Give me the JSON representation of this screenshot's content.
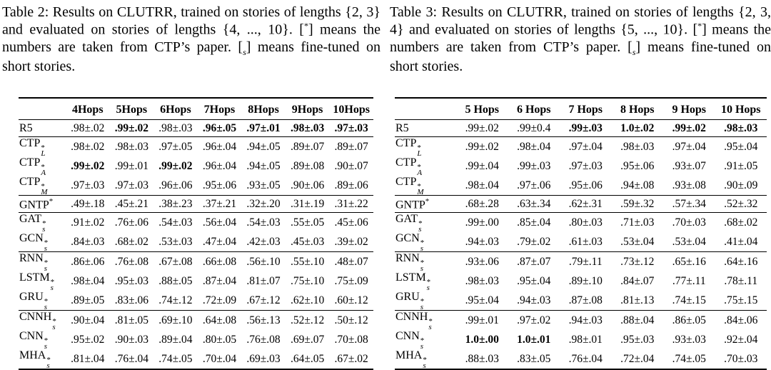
{
  "page": {
    "background": "#ffffff",
    "text_color": "#000000"
  },
  "tables": [
    {
      "id": "table-2",
      "caption_segments": [
        {
          "t": "Table 2:  Results on CLUTRR, trained on stories of lengths {2, 3} and evaluated on stories of lengths {4, ..., 10}.  ["
        },
        {
          "t": "*",
          "style": "sup"
        },
        {
          "t": "] means the numbers are taken from CTP’s paper. ["
        },
        {
          "t": "s",
          "style": "sub",
          "italic": true
        },
        {
          "t": "] means fine-tuned on short stories."
        }
      ],
      "columns": [
        "4Hops",
        "5Hops",
        "6Hops",
        "7Hops",
        "8Hops",
        "9Hops",
        "10Hops"
      ],
      "groups": [
        {
          "rows": [
            {
              "label": {
                "base": "R5"
              },
              "cells": [
                ".98±.02",
                {
                  "t": ".99±.02",
                  "b": true
                },
                ".98±.03",
                {
                  "t": ".96±.05",
                  "b": true
                },
                {
                  "t": ".97±.01",
                  "b": true
                },
                {
                  "t": ".98±.03",
                  "b": true
                },
                {
                  "t": ".97±.03",
                  "b": true
                }
              ]
            }
          ]
        },
        {
          "rows": [
            {
              "label": {
                "base": "CTP",
                "sup": "*",
                "sub": "L"
              },
              "cells": [
                ".98±.02",
                ".98±.03",
                ".97±.05",
                ".96±.04",
                ".94±.05",
                ".89±.07",
                ".89±.07"
              ]
            },
            {
              "label": {
                "base": "CTP",
                "sup": "*",
                "sub": "A"
              },
              "cells": [
                {
                  "t": ".99±.02",
                  "b": true
                },
                ".99±.01",
                {
                  "t": ".99±.02",
                  "b": true
                },
                ".96±.04",
                ".94±.05",
                ".89±.08",
                ".90±.07"
              ]
            },
            {
              "label": {
                "base": "CTP",
                "sup": "*",
                "sub": "M"
              },
              "cells": [
                ".97±.03",
                ".97±.03",
                ".96±.06",
                ".95±.06",
                ".93±.05",
                ".90±.06",
                ".89±.06"
              ]
            }
          ]
        },
        {
          "rows": [
            {
              "label": {
                "base": "GNTP",
                "sup": "*"
              },
              "cells": [
                ".49±.18",
                ".45±.21",
                ".38±.23",
                ".37±.21",
                ".32±.20",
                ".31±.19",
                ".31±.22"
              ]
            }
          ]
        },
        {
          "rows": [
            {
              "label": {
                "base": "GAT",
                "sup": "*",
                "sub": "s"
              },
              "cells": [
                ".91±.02",
                ".76±.06",
                ".54±.03",
                ".56±.04",
                ".54±.03",
                ".55±.05",
                ".45±.06"
              ]
            },
            {
              "label": {
                "base": "GCN",
                "sup": "*",
                "sub": "s"
              },
              "cells": [
                ".84±.03",
                ".68±.02",
                ".53±.03",
                ".47±.04",
                ".42±.03",
                ".45±.03",
                ".39±.02"
              ]
            }
          ]
        },
        {
          "rows": [
            {
              "label": {
                "base": "RNN",
                "sup": "*",
                "sub": "s"
              },
              "cells": [
                ".86±.06",
                ".76±.08",
                ".67±.08",
                ".66±.08",
                ".56±.10",
                ".55±.10",
                ".48±.07"
              ]
            },
            {
              "label": {
                "base": "LSTM",
                "sup": "*",
                "sub": "s"
              },
              "cells": [
                ".98±.04",
                ".95±.03",
                ".88±.05",
                ".87±.04",
                ".81±.07",
                ".75±.10",
                ".75±.09"
              ]
            },
            {
              "label": {
                "base": "GRU",
                "sup": "*",
                "sub": "s"
              },
              "cells": [
                ".89±.05",
                ".83±.06",
                ".74±.12",
                ".72±.09",
                ".67±.12",
                ".62±.10",
                ".60±.12"
              ]
            }
          ]
        },
        {
          "rows": [
            {
              "label": {
                "base": "CNNH",
                "sup": "*",
                "sub": "s"
              },
              "cells": [
                ".90±.04",
                ".81±.05",
                ".69±.10",
                ".64±.08",
                ".56±.13",
                ".52±.12",
                ".50±.12"
              ]
            },
            {
              "label": {
                "base": "CNN",
                "sup": "*",
                "sub": "s"
              },
              "cells": [
                ".95±.02",
                ".90±.03",
                ".89±.04",
                ".80±.05",
                ".76±.08",
                ".69±.07",
                ".70±.08"
              ]
            },
            {
              "label": {
                "base": "MHA",
                "sup": "*",
                "sub": "s"
              },
              "cells": [
                ".81±.04",
                ".76±.04",
                ".74±.05",
                ".70±.04",
                ".69±.03",
                ".64±.05",
                ".67±.02"
              ]
            }
          ]
        }
      ]
    },
    {
      "id": "table-3",
      "caption_segments": [
        {
          "t": "Table 3:  Results on CLUTRR, trained on stories of lengths {2, 3, 4} and evaluated on stories of lengths {5, ..., 10}.  ["
        },
        {
          "t": "*",
          "style": "sup"
        },
        {
          "t": "] means the numbers are taken from CTP’s paper. ["
        },
        {
          "t": "s",
          "style": "sub",
          "italic": true
        },
        {
          "t": "] means fine-tuned on short stories."
        }
      ],
      "columns": [
        "5 Hops",
        "6 Hops",
        "7 Hops",
        "8 Hops",
        "9 Hops",
        "10 Hops"
      ],
      "groups": [
        {
          "rows": [
            {
              "label": {
                "base": "R5"
              },
              "cells": [
                ".99±.02",
                ".99±0.4",
                {
                  "t": ".99±.03",
                  "b": true
                },
                {
                  "t": "1.0±.02",
                  "b": true
                },
                {
                  "t": ".99±.02",
                  "b": true
                },
                {
                  "t": ".98±.03",
                  "b": true
                }
              ]
            }
          ]
        },
        {
          "rows": [
            {
              "label": {
                "base": "CTP",
                "sup": "*",
                "sub": "L"
              },
              "cells": [
                ".99±.02",
                ".98±.04",
                ".97±.04",
                ".98±.03",
                ".97±.04",
                ".95±.04"
              ]
            },
            {
              "label": {
                "base": "CTP",
                "sup": "*",
                "sub": "A"
              },
              "cells": [
                ".99±.04",
                ".99±.03",
                ".97±.03",
                ".95±.06",
                ".93±.07",
                ".91±.05"
              ]
            },
            {
              "label": {
                "base": "CTP",
                "sup": "*",
                "sub": "M"
              },
              "cells": [
                ".98±.04",
                ".97±.06",
                ".95±.06",
                ".94±.08",
                ".93±.08",
                ".90±.09"
              ]
            }
          ]
        },
        {
          "rows": [
            {
              "label": {
                "base": "GNTP",
                "sup": "*"
              },
              "cells": [
                ".68±.28",
                ".63±.34",
                ".62±.31",
                ".59±.32",
                ".57±.34",
                ".52±.32"
              ]
            }
          ]
        },
        {
          "rows": [
            {
              "label": {
                "base": "GAT",
                "sup": "*",
                "sub": "s"
              },
              "cells": [
                ".99±.00",
                ".85±.04",
                ".80±.03",
                ".71±.03",
                ".70±.03",
                ".68±.02"
              ]
            },
            {
              "label": {
                "base": "GCN",
                "sup": "*",
                "sub": "s"
              },
              "cells": [
                ".94±.03",
                ".79±.02",
                ".61±.03",
                ".53±.04",
                ".53±.04",
                ".41±.04"
              ]
            }
          ]
        },
        {
          "rows": [
            {
              "label": {
                "base": "RNN",
                "sup": "*",
                "sub": "s"
              },
              "cells": [
                ".93±.06",
                ".87±.07",
                ".79±.11",
                ".73±.12",
                ".65±.16",
                ".64±.16"
              ]
            },
            {
              "label": {
                "base": "LSTM",
                "sup": "*",
                "sub": "s"
              },
              "cells": [
                ".98±.03",
                ".95±.04",
                ".89±.10",
                ".84±.07",
                ".77±.11",
                ".78±.11"
              ]
            },
            {
              "label": {
                "base": "GRU",
                "sup": "*",
                "sub": "s"
              },
              "cells": [
                ".95±.04",
                ".94±.03",
                ".87±.08",
                ".81±.13",
                ".74±.15",
                ".75±.15"
              ]
            }
          ]
        },
        {
          "rows": [
            {
              "label": {
                "base": "CNNH",
                "sup": "*",
                "sub": "s"
              },
              "cells": [
                ".99±.01",
                ".97±.02",
                ".94±.03",
                ".88±.04",
                ".86±.05",
                ".84±.06"
              ]
            },
            {
              "label": {
                "base": "CNN",
                "sup": "*",
                "sub": "s"
              },
              "cells": [
                {
                  "t": "1.0±.00",
                  "b": true
                },
                {
                  "t": "1.0±.01",
                  "b": true
                },
                ".98±.01",
                ".95±.03",
                ".93±.03",
                ".92±.04"
              ]
            },
            {
              "label": {
                "base": "MHA",
                "sup": "*",
                "sub": "s"
              },
              "cells": [
                ".88±.03",
                ".83±.05",
                ".76±.04",
                ".72±.04",
                ".74±.05",
                ".70±.03"
              ]
            }
          ]
        }
      ]
    }
  ]
}
